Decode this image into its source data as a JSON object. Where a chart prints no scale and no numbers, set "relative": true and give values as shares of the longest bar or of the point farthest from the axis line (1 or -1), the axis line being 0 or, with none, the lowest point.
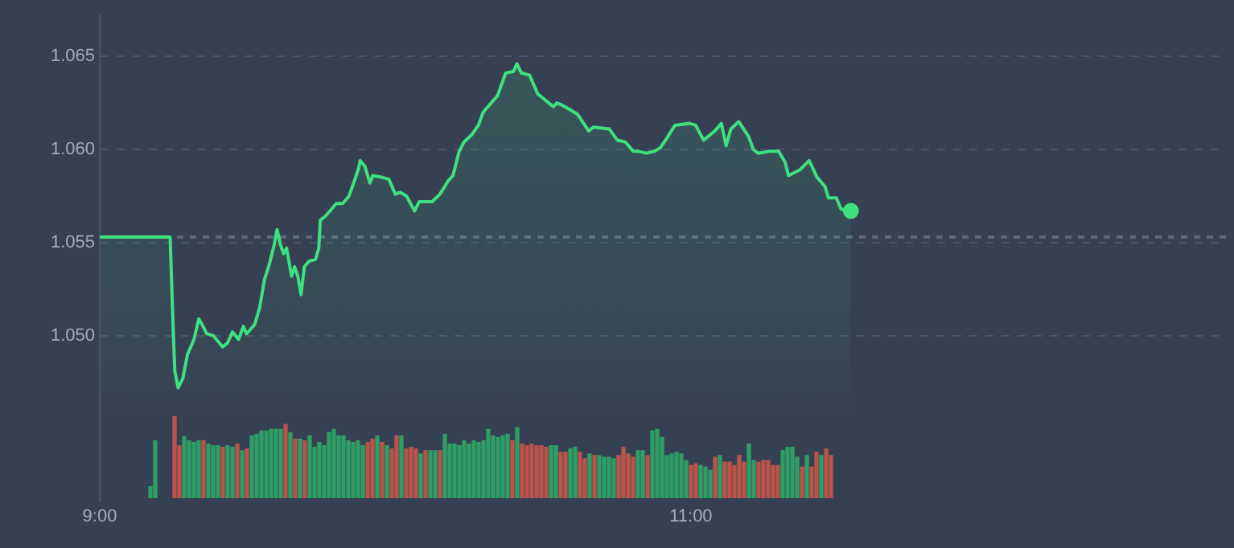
{
  "chart_data": [
    {
      "type": "area",
      "xlim": [
        9,
        12.81
      ],
      "ylim": [
        1.0411,
        1.0672
      ],
      "xticks": [
        {
          "value": 9,
          "label": "9:00"
        },
        {
          "value": 11,
          "label": "11:00"
        }
      ],
      "yticks": [
        {
          "value": 1.05,
          "label": "1.050"
        },
        {
          "value": 1.055,
          "label": "1.055"
        },
        {
          "value": 1.06,
          "label": "1.060"
        },
        {
          "value": 1.065,
          "label": "1.065"
        }
      ],
      "grid": "y",
      "legend": false,
      "ref_lines": [
        {
          "axis": "y",
          "value": 1.0553,
          "line_style": "dashed",
          "color": "#5f6878"
        }
      ],
      "series": [
        {
          "type": "area",
          "color": "#3ee07f",
          "marker": "none",
          "x": [
            9.0,
            9.238,
            9.249,
            9.254,
            9.265,
            9.281,
            9.297,
            9.319,
            9.335,
            9.346,
            9.362,
            9.384,
            9.416,
            9.432,
            9.449,
            9.47,
            9.486,
            9.497,
            9.524,
            9.541,
            9.557,
            9.573,
            9.589,
            9.6,
            9.611,
            9.622,
            9.632,
            9.649,
            9.659,
            9.67,
            9.681,
            9.692,
            9.708,
            9.73,
            9.741,
            9.746,
            9.762,
            9.784,
            9.8,
            9.822,
            9.843,
            9.859,
            9.876,
            9.881,
            9.897,
            9.914,
            9.924,
            9.957,
            9.978,
            10.0,
            10.016,
            10.038,
            10.065,
            10.081,
            10.124,
            10.151,
            10.178,
            10.195,
            10.216,
            10.232,
            10.259,
            10.281,
            10.297,
            10.324,
            10.346,
            10.373,
            10.4,
            10.411,
            10.427,
            10.454,
            10.481,
            10.519,
            10.535,
            10.546,
            10.562,
            10.584,
            10.616,
            10.654,
            10.67,
            10.724,
            10.751,
            10.778,
            10.805,
            10.822,
            10.849,
            10.876,
            10.897,
            10.914,
            10.946,
            10.995,
            11.016,
            11.043,
            11.081,
            11.103,
            11.119,
            11.135,
            11.162,
            11.195,
            11.211,
            11.227,
            11.265,
            11.297,
            11.319,
            11.33,
            11.368,
            11.4,
            11.427,
            11.454,
            11.465,
            11.492,
            11.508,
            11.541
          ],
          "values": [
            1.0553,
            1.0553,
            1.0501,
            1.0481,
            1.0472,
            1.0477,
            1.049,
            1.0498,
            1.0509,
            1.0506,
            1.0501,
            1.05,
            1.0494,
            1.0496,
            1.0502,
            1.0498,
            1.0505,
            1.0501,
            1.0506,
            1.0515,
            1.053,
            1.0538,
            1.0548,
            1.0557,
            1.0549,
            1.0544,
            1.0547,
            1.0532,
            1.0537,
            1.0532,
            1.0522,
            1.0537,
            1.054,
            1.0541,
            1.0547,
            1.0562,
            1.0564,
            1.0568,
            1.0571,
            1.0571,
            1.0575,
            1.0582,
            1.059,
            1.0594,
            1.0591,
            1.0582,
            1.0586,
            1.0585,
            1.0584,
            1.0576,
            1.0577,
            1.0575,
            1.0567,
            1.0572,
            1.0572,
            1.0576,
            1.0583,
            1.0586,
            1.0599,
            1.0604,
            1.0608,
            1.0613,
            1.062,
            1.0625,
            1.0629,
            1.0641,
            1.0642,
            1.0646,
            1.0641,
            1.064,
            1.063,
            1.0625,
            1.0623,
            1.0625,
            1.0624,
            1.0622,
            1.0619,
            1.061,
            1.0612,
            1.0611,
            1.0605,
            1.0604,
            1.0599,
            1.0599,
            1.0598,
            1.0599,
            1.0601,
            1.0605,
            1.0613,
            1.0614,
            1.0613,
            1.0605,
            1.061,
            1.0614,
            1.0602,
            1.0611,
            1.0615,
            1.0607,
            1.06,
            1.0598,
            1.0599,
            1.0599,
            1.0593,
            1.0586,
            1.0589,
            1.0594,
            1.0585,
            1.058,
            1.0574,
            1.0574,
            1.0568,
            1.0567
          ]
        },
        {
          "type": "scatter",
          "color": "#3ee07f",
          "marker": "circle",
          "x": [
            11.541
          ],
          "values": [
            1.0567
          ]
        }
      ]
    },
    {
      "type": "bar",
      "relative": true,
      "tick_labels": false,
      "categories": [
        null,
        null,
        null,
        null,
        null,
        null,
        null,
        null,
        null,
        null,
        null,
        null,
        null,
        null,
        null,
        null,
        null,
        null,
        null,
        null,
        null,
        null,
        null,
        null,
        null,
        null,
        null,
        null,
        null,
        null,
        null,
        null,
        null,
        null,
        null,
        null,
        null,
        null,
        null,
        null,
        null,
        null,
        null,
        null,
        null,
        null,
        null,
        null,
        null,
        null,
        null,
        null,
        null,
        null,
        null,
        null,
        null,
        null,
        null,
        null,
        null,
        null,
        null,
        null,
        null,
        null,
        null,
        null,
        null,
        null,
        null,
        null,
        null,
        null,
        null,
        null,
        null,
        null,
        null,
        null,
        null,
        null,
        null,
        null,
        null,
        null,
        null,
        null,
        null,
        null,
        null,
        null,
        null,
        null,
        null,
        null,
        null,
        null,
        null,
        null,
        null,
        null,
        null,
        null,
        null,
        null,
        null,
        null,
        null,
        null,
        null,
        null,
        null,
        null,
        null,
        null,
        null,
        null,
        null,
        null,
        null,
        null,
        null,
        null,
        null,
        null,
        null,
        null,
        null,
        null,
        null,
        null,
        null,
        null,
        null,
        null,
        null
      ],
      "values": [
        1,
        0.64,
        0.75,
        0.7,
        0.68,
        0.7,
        0.7,
        0.66,
        0.64,
        0.64,
        0.62,
        0.64,
        0.62,
        0.66,
        0.58,
        0.6,
        0.76,
        0.78,
        0.82,
        0.82,
        0.84,
        0.84,
        0.84,
        0.9,
        0.8,
        0.72,
        0.72,
        0.7,
        0.76,
        0.62,
        0.68,
        0.64,
        0.8,
        0.84,
        0.76,
        0.76,
        0.7,
        0.68,
        0.7,
        0.64,
        0.68,
        0.72,
        0.76,
        0.68,
        0.64,
        0.6,
        0.76,
        0.76,
        0.6,
        0.62,
        0.6,
        0.54,
        0.58,
        0.58,
        0.58,
        0.58,
        0.78,
        0.66,
        0.66,
        0.64,
        0.7,
        0.66,
        0.7,
        0.68,
        0.7,
        0.84,
        0.76,
        0.74,
        0.76,
        0.78,
        0.7,
        0.86,
        0.66,
        0.64,
        0.66,
        0.64,
        0.64,
        0.62,
        0.64,
        0.64,
        0.56,
        0.56,
        0.6,
        0.62,
        0.56,
        0.48,
        0.54,
        0.52,
        0.52,
        0.5,
        0.5,
        0.48,
        0.52,
        0.62,
        0.54,
        0.5,
        0.58,
        0.58,
        0.52,
        0.82,
        0.84,
        0.74,
        0.52,
        0.54,
        0.56,
        0.54,
        0.46,
        0.4,
        0.42,
        0.4,
        0.38,
        0.34,
        0.5,
        0.52,
        0.44,
        0.44,
        0.4,
        0.52,
        0.44,
        0.66,
        0.46,
        0.44,
        0.46,
        0.46,
        0.4,
        0.4,
        0.58,
        0.62,
        0.62,
        0.5,
        0.38,
        0.52,
        0.38,
        0.56,
        0.52,
        0.6,
        0.52
      ],
      "colors": [
        "#b9544b",
        "#b9544b",
        "#2f9e65",
        "#2f9e65",
        "#2f9e65",
        "#2f9e65",
        "#b9544b",
        "#2f9e65",
        "#2f9e65",
        "#2f9e65",
        "#b9544b",
        "#2f9e65",
        "#2f9e65",
        "#b9544b",
        "#2f9e65",
        "#b9544b",
        "#2f9e65",
        "#2f9e65",
        "#2f9e65",
        "#2f9e65",
        "#2f9e65",
        "#2f9e65",
        "#2f9e65",
        "#b9544b",
        "#2f9e65",
        "#b9544b",
        "#2f9e65",
        "#b9544b",
        "#2f9e65",
        "#2f9e65",
        "#2f9e65",
        "#2f9e65",
        "#2f9e65",
        "#2f9e65",
        "#2f9e65",
        "#2f9e65",
        "#2f9e65",
        "#2f9e65",
        "#2f9e65",
        "#2f9e65",
        "#b9544b",
        "#b9544b",
        "#2f9e65",
        "#b9544b",
        "#2f9e65",
        "#b9544b",
        "#b9544b",
        "#2f9e65",
        "#b9544b",
        "#b9544b",
        "#b9544b",
        "#2f9e65",
        "#b9544b",
        "#2f9e65",
        "#2f9e65",
        "#b9544b",
        "#2f9e65",
        "#2f9e65",
        "#2f9e65",
        "#2f9e65",
        "#2f9e65",
        "#2f9e65",
        "#2f9e65",
        "#2f9e65",
        "#2f9e65",
        "#2f9e65",
        "#2f9e65",
        "#2f9e65",
        "#2f9e65",
        "#2f9e65",
        "#b9544b",
        "#2f9e65",
        "#b9544b",
        "#b9544b",
        "#b9544b",
        "#b9544b",
        "#b9544b",
        "#b9544b",
        "#2f9e65",
        "#2f9e65",
        "#b9544b",
        "#b9544b",
        "#2f9e65",
        "#2f9e65",
        "#b9544b",
        "#b9544b",
        "#2f9e65",
        "#b9544b",
        "#2f9e65",
        "#2f9e65",
        "#2f9e65",
        "#2f9e65",
        "#b9544b",
        "#b9544b",
        "#b9544b",
        "#b9544b",
        "#2f9e65",
        "#2f9e65",
        "#b9544b",
        "#2f9e65",
        "#2f9e65",
        "#2f9e65",
        "#2f9e65",
        "#2f9e65",
        "#2f9e65",
        "#2f9e65",
        "#2f9e65",
        "#b9544b",
        "#b9544b",
        "#2f9e65",
        "#2f9e65",
        "#2f9e65",
        "#b9544b",
        "#2f9e65",
        "#b9544b",
        "#b9544b",
        "#b9544b",
        "#b9544b",
        "#b9544b",
        "#2f9e65",
        "#2f9e65",
        "#b9544b",
        "#b9544b",
        "#b9544b",
        "#b9544b",
        "#b9544b",
        "#2f9e65",
        "#2f9e65",
        "#2f9e65",
        "#2f9e65",
        "#b9544b",
        "#2f9e65",
        "#b9544b",
        "#b9544b",
        "#2f9e65",
        "#b9544b",
        "#b9544b"
      ]
    },
    {
      "type": "bar",
      "relative": true,
      "tick_labels": false,
      "categories": [
        null,
        null
      ],
      "values": [
        0.2,
        1
      ],
      "colors": [
        "#2f9e65",
        "#2f9e65"
      ]
    }
  ]
}
